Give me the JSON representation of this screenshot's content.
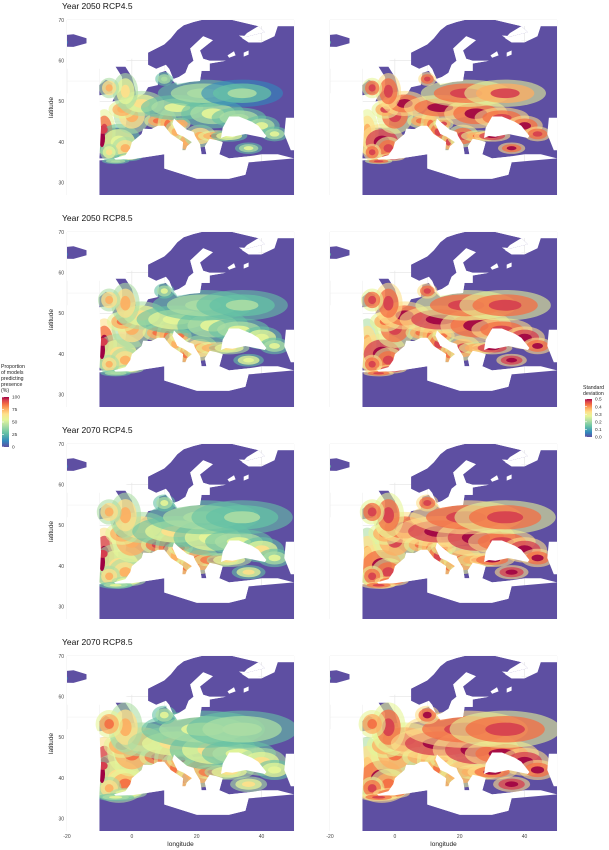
{
  "figure": {
    "rows": [
      {
        "title": "Year 2050 RCP4.5"
      },
      {
        "title": "Year 2050 RCP8.5"
      },
      {
        "title": "Year 2070 RCP4.5"
      },
      {
        "title": "Year 2070 RCP8.5"
      }
    ],
    "left_legend": {
      "title_lines": [
        "Proportion",
        "of models",
        "predicting",
        "presence",
        "(%)"
      ],
      "ticks": [
        0,
        25,
        50,
        75,
        100
      ]
    },
    "right_legend": {
      "title_lines": [
        "Standard",
        "deviation"
      ],
      "ticks": [
        0.0,
        0.1,
        0.2,
        0.3,
        0.4,
        0.5
      ],
      "tick_labels": [
        "0.0",
        "0.1",
        "0.2",
        "0.3",
        "0.4",
        "0.5"
      ]
    }
  },
  "chart_data": {
    "type": "heatmap",
    "xlabel": "longitude",
    "ylabel": "latitude",
    "xlim": [
      -20,
      50
    ],
    "ylim": [
      27,
      70
    ],
    "x_ticks": [
      -20,
      0,
      20,
      40
    ],
    "y_ticks": [
      30,
      40,
      50,
      60,
      70
    ],
    "grid": true,
    "colors": {
      "background": "#5e4fa2",
      "ramp": [
        "#5e4fa2",
        "#3288bd",
        "#66c2a5",
        "#abdda4",
        "#e6f598",
        "#fee08b",
        "#fdae61",
        "#f46d43",
        "#d53e4f",
        "#9e0142"
      ]
    }
  }
}
